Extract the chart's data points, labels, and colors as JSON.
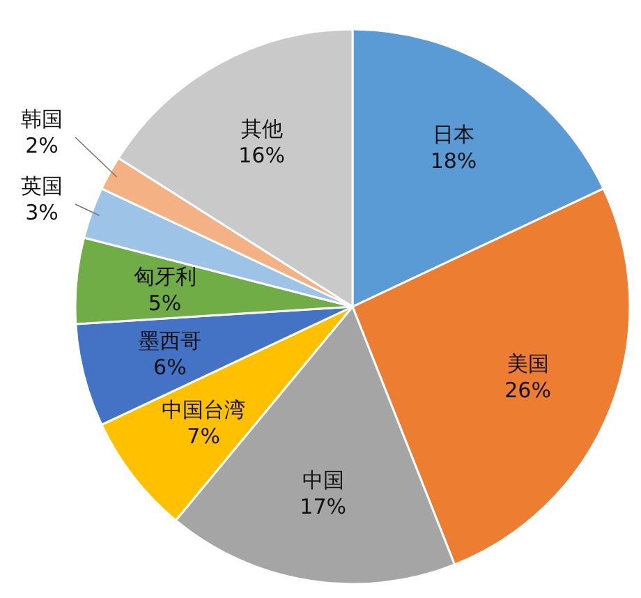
{
  "chart_data": {
    "type": "pie",
    "categories": [
      "日本",
      "美国",
      "中国",
      "中国台湾",
      "墨西哥",
      "匈牙利",
      "英国",
      "韩国",
      "其他"
    ],
    "values": [
      18,
      26,
      17,
      7,
      6,
      5,
      3,
      2,
      16
    ],
    "value_labels": [
      "18%",
      "26%",
      "17%",
      "7%",
      "6%",
      "5%",
      "3%",
      "2%",
      "16%"
    ],
    "colors": [
      "#5b9bd5",
      "#ed7d31",
      "#a5a5a5",
      "#ffc000",
      "#4472c4",
      "#70ad47",
      "#9dc3e6",
      "#f4b183",
      "#c9c9c9"
    ]
  }
}
